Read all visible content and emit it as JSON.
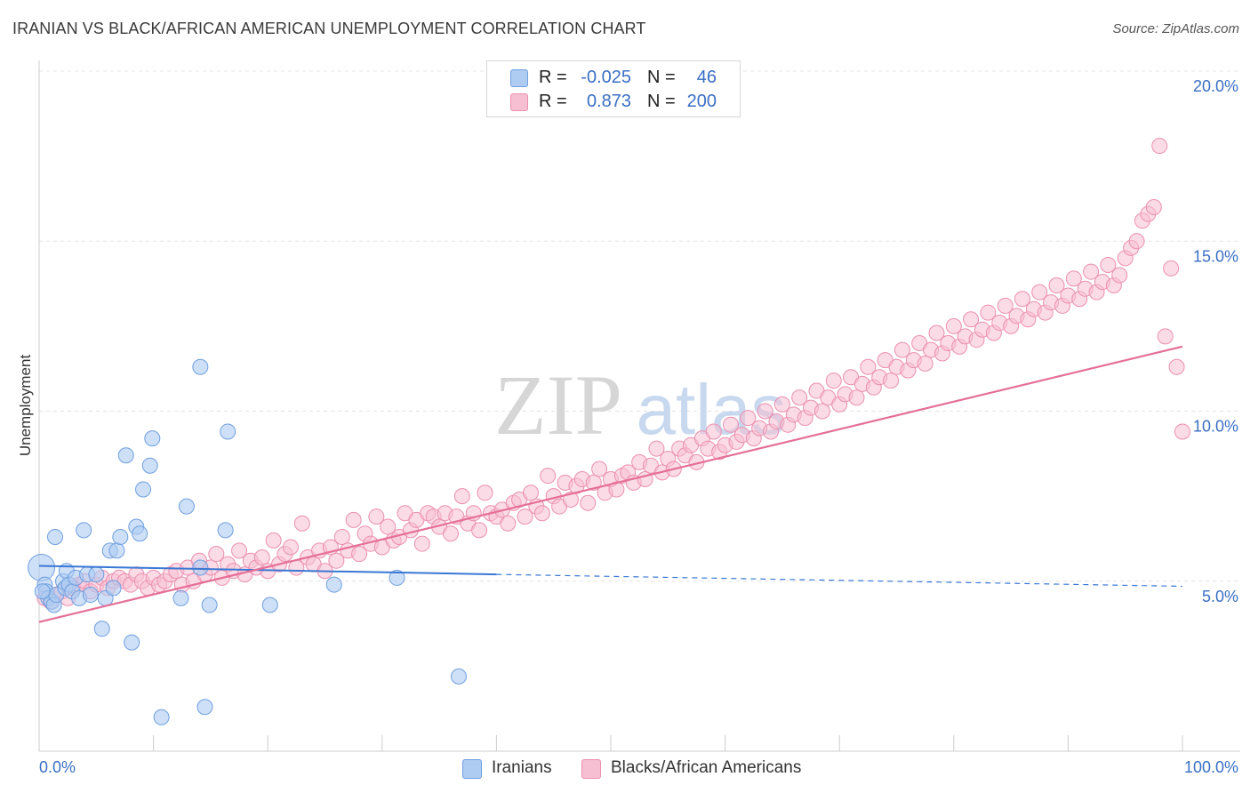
{
  "title": "IRANIAN VS BLACK/AFRICAN AMERICAN UNEMPLOYMENT CORRELATION CHART",
  "source": "Source: ZipAtlas.com",
  "watermark": {
    "zip": "ZIP",
    "atlas": "atlas"
  },
  "legend_top": {
    "rows": [
      {
        "r_label": "R =",
        "r_value": "-0.025",
        "n_label": "N =",
        "n_value": "46"
      },
      {
        "r_label": "R =",
        "r_value": "0.873",
        "n_label": "N =",
        "n_value": "200"
      }
    ]
  },
  "legend_bottom": {
    "series": [
      "Iranians",
      "Blacks/African Americans"
    ]
  },
  "colors": {
    "blue_fill": "#aecbf2",
    "blue_stroke": "#6f9fe0",
    "blue_line": "#3a78d4",
    "pink_fill": "#f7bfd2",
    "pink_stroke": "#ec8fb0",
    "pink_line": "#e56f98",
    "axis_label": "#3a6fc4",
    "grid": "#e4e4e4"
  },
  "chart_data": {
    "type": "scatter",
    "title": "IRANIAN VS BLACK/AFRICAN AMERICAN UNEMPLOYMENT CORRELATION CHART",
    "xlabel": "",
    "ylabel": "Unemployment",
    "xlim": [
      0,
      100
    ],
    "ylim": [
      0,
      20
    ],
    "x_tick_labels": [
      "0.0%",
      "100.0%"
    ],
    "y_ticks": [
      5,
      10,
      15,
      20
    ],
    "y_tick_labels": [
      "5.0%",
      "10.0%",
      "15.0%",
      "20.0%"
    ],
    "grid": true,
    "series": [
      {
        "name": "Iranians",
        "r": -0.025,
        "n": 46,
        "trend": {
          "x": [
            0,
            40
          ],
          "y": [
            5.45,
            5.2
          ],
          "dashed_to": [
            100,
            4.85
          ]
        },
        "points": [
          [
            0.2,
            5.4
          ],
          [
            0.5,
            4.9
          ],
          [
            0.6,
            4.7
          ],
          [
            0.8,
            4.5
          ],
          [
            1.1,
            4.4
          ],
          [
            1.3,
            4.3
          ],
          [
            1.5,
            4.6
          ],
          [
            1.4,
            6.3
          ],
          [
            2.1,
            5.0
          ],
          [
            2.3,
            4.8
          ],
          [
            2.4,
            5.3
          ],
          [
            2.6,
            4.9
          ],
          [
            2.9,
            4.7
          ],
          [
            3.2,
            5.1
          ],
          [
            3.5,
            4.5
          ],
          [
            3.9,
            6.5
          ],
          [
            4.2,
            5.2
          ],
          [
            4.5,
            4.6
          ],
          [
            5.0,
            5.2
          ],
          [
            5.5,
            3.6
          ],
          [
            5.8,
            4.5
          ],
          [
            6.2,
            5.9
          ],
          [
            6.5,
            4.8
          ],
          [
            6.8,
            5.9
          ],
          [
            7.1,
            6.3
          ],
          [
            7.6,
            8.7
          ],
          [
            8.1,
            3.2
          ],
          [
            8.5,
            6.6
          ],
          [
            8.8,
            6.4
          ],
          [
            9.1,
            7.7
          ],
          [
            9.7,
            8.4
          ],
          [
            9.9,
            9.2
          ],
          [
            10.7,
            1.0
          ],
          [
            12.4,
            4.5
          ],
          [
            12.9,
            7.2
          ],
          [
            14.1,
            5.4
          ],
          [
            14.1,
            11.3
          ],
          [
            14.5,
            1.3
          ],
          [
            14.9,
            4.3
          ],
          [
            16.3,
            6.5
          ],
          [
            16.5,
            9.4
          ],
          [
            20.2,
            4.3
          ],
          [
            25.8,
            4.9
          ],
          [
            31.3,
            5.1
          ],
          [
            36.7,
            2.2
          ],
          [
            0.3,
            4.7
          ]
        ]
      },
      {
        "name": "Blacks/African Americans",
        "r": 0.873,
        "n": 200,
        "trend": {
          "x": [
            0,
            100
          ],
          "y": [
            3.8,
            11.9
          ]
        },
        "points": [
          [
            0.5,
            4.5
          ],
          [
            1,
            4.4
          ],
          [
            1.5,
            4.6
          ],
          [
            2,
            4.7
          ],
          [
            2.5,
            4.5
          ],
          [
            3,
            4.8
          ],
          [
            3.5,
            4.9
          ],
          [
            4,
            5.0
          ],
          [
            4.5,
            4.7
          ],
          [
            5,
            4.9
          ],
          [
            5.5,
            5.1
          ],
          [
            6,
            4.8
          ],
          [
            6.5,
            5.0
          ],
          [
            7,
            5.1
          ],
          [
            7.5,
            5.0
          ],
          [
            8,
            4.9
          ],
          [
            8.5,
            5.2
          ],
          [
            9,
            5.0
          ],
          [
            9.5,
            4.8
          ],
          [
            10,
            5.1
          ],
          [
            10.5,
            4.9
          ],
          [
            11,
            5.0
          ],
          [
            11.5,
            5.2
          ],
          [
            12,
            5.3
          ],
          [
            12.5,
            4.9
          ],
          [
            13,
            5.4
          ],
          [
            13.5,
            5.0
          ],
          [
            14,
            5.6
          ],
          [
            14.5,
            5.2
          ],
          [
            15,
            5.4
          ],
          [
            15.5,
            5.8
          ],
          [
            16,
            5.1
          ],
          [
            16.5,
            5.5
          ],
          [
            17,
            5.3
          ],
          [
            17.5,
            5.9
          ],
          [
            18,
            5.2
          ],
          [
            18.5,
            5.6
          ],
          [
            19,
            5.4
          ],
          [
            19.5,
            5.7
          ],
          [
            20,
            5.3
          ],
          [
            20.5,
            6.2
          ],
          [
            21,
            5.5
          ],
          [
            21.5,
            5.8
          ],
          [
            22,
            6.0
          ],
          [
            22.5,
            5.4
          ],
          [
            23,
            6.7
          ],
          [
            23.5,
            5.7
          ],
          [
            24,
            5.5
          ],
          [
            24.5,
            5.9
          ],
          [
            25,
            5.3
          ],
          [
            25.5,
            6.0
          ],
          [
            26,
            5.6
          ],
          [
            26.5,
            6.3
          ],
          [
            27,
            5.9
          ],
          [
            27.5,
            6.8
          ],
          [
            28,
            5.8
          ],
          [
            28.5,
            6.4
          ],
          [
            29,
            6.1
          ],
          [
            29.5,
            6.9
          ],
          [
            30,
            6.0
          ],
          [
            30.5,
            6.6
          ],
          [
            31,
            6.2
          ],
          [
            31.5,
            6.3
          ],
          [
            32,
            7.0
          ],
          [
            32.5,
            6.5
          ],
          [
            33,
            6.8
          ],
          [
            33.5,
            6.1
          ],
          [
            34,
            7.0
          ],
          [
            34.5,
            6.9
          ],
          [
            35,
            6.6
          ],
          [
            35.5,
            7.0
          ],
          [
            36,
            6.4
          ],
          [
            36.5,
            6.9
          ],
          [
            37,
            7.5
          ],
          [
            37.5,
            6.7
          ],
          [
            38,
            7.0
          ],
          [
            38.5,
            6.5
          ],
          [
            39,
            7.6
          ],
          [
            39.5,
            7.0
          ],
          [
            40,
            6.9
          ],
          [
            40.5,
            7.1
          ],
          [
            41,
            6.7
          ],
          [
            41.5,
            7.3
          ],
          [
            42,
            7.4
          ],
          [
            42.5,
            6.9
          ],
          [
            43,
            7.6
          ],
          [
            43.5,
            7.2
          ],
          [
            44,
            7.0
          ],
          [
            44.5,
            8.1
          ],
          [
            45,
            7.5
          ],
          [
            45.5,
            7.2
          ],
          [
            46,
            7.9
          ],
          [
            46.5,
            7.4
          ],
          [
            47,
            7.8
          ],
          [
            47.5,
            8.0
          ],
          [
            48,
            7.3
          ],
          [
            48.5,
            7.9
          ],
          [
            49,
            8.3
          ],
          [
            49.5,
            7.6
          ],
          [
            50,
            8.0
          ],
          [
            50.5,
            7.7
          ],
          [
            51,
            8.1
          ],
          [
            51.5,
            8.2
          ],
          [
            52,
            7.9
          ],
          [
            52.5,
            8.5
          ],
          [
            53,
            8.0
          ],
          [
            53.5,
            8.4
          ],
          [
            54,
            8.9
          ],
          [
            54.5,
            8.2
          ],
          [
            55,
            8.6
          ],
          [
            55.5,
            8.3
          ],
          [
            56,
            8.9
          ],
          [
            56.5,
            8.7
          ],
          [
            57,
            9.0
          ],
          [
            57.5,
            8.5
          ],
          [
            58,
            9.2
          ],
          [
            58.5,
            8.9
          ],
          [
            59,
            9.4
          ],
          [
            59.5,
            8.8
          ],
          [
            60,
            9.0
          ],
          [
            60.5,
            9.6
          ],
          [
            61,
            9.1
          ],
          [
            61.5,
            9.3
          ],
          [
            62,
            9.8
          ],
          [
            62.5,
            9.2
          ],
          [
            63,
            9.5
          ],
          [
            63.5,
            10.0
          ],
          [
            64,
            9.4
          ],
          [
            64.5,
            9.7
          ],
          [
            65,
            10.2
          ],
          [
            65.5,
            9.6
          ],
          [
            66,
            9.9
          ],
          [
            66.5,
            10.4
          ],
          [
            67,
            9.8
          ],
          [
            67.5,
            10.1
          ],
          [
            68,
            10.6
          ],
          [
            68.5,
            10.0
          ],
          [
            69,
            10.4
          ],
          [
            69.5,
            10.9
          ],
          [
            70,
            10.2
          ],
          [
            70.5,
            10.5
          ],
          [
            71,
            11.0
          ],
          [
            71.5,
            10.4
          ],
          [
            72,
            10.8
          ],
          [
            72.5,
            11.3
          ],
          [
            73,
            10.7
          ],
          [
            73.5,
            11.0
          ],
          [
            74,
            11.5
          ],
          [
            74.5,
            10.9
          ],
          [
            75,
            11.3
          ],
          [
            75.5,
            11.8
          ],
          [
            76,
            11.2
          ],
          [
            76.5,
            11.5
          ],
          [
            77,
            12.0
          ],
          [
            77.5,
            11.4
          ],
          [
            78,
            11.8
          ],
          [
            78.5,
            12.3
          ],
          [
            79,
            11.7
          ],
          [
            79.5,
            12.0
          ],
          [
            80,
            12.5
          ],
          [
            80.5,
            11.9
          ],
          [
            81,
            12.2
          ],
          [
            81.5,
            12.7
          ],
          [
            82,
            12.1
          ],
          [
            82.5,
            12.4
          ],
          [
            83,
            12.9
          ],
          [
            83.5,
            12.3
          ],
          [
            84,
            12.6
          ],
          [
            84.5,
            13.1
          ],
          [
            85,
            12.5
          ],
          [
            85.5,
            12.8
          ],
          [
            86,
            13.3
          ],
          [
            86.5,
            12.7
          ],
          [
            87,
            13.0
          ],
          [
            87.5,
            13.5
          ],
          [
            88,
            12.9
          ],
          [
            88.5,
            13.2
          ],
          [
            89,
            13.7
          ],
          [
            89.5,
            13.1
          ],
          [
            90,
            13.4
          ],
          [
            90.5,
            13.9
          ],
          [
            91,
            13.3
          ],
          [
            91.5,
            13.6
          ],
          [
            92,
            14.1
          ],
          [
            92.5,
            13.5
          ],
          [
            93,
            13.8
          ],
          [
            93.5,
            14.3
          ],
          [
            94,
            13.7
          ],
          [
            94.5,
            14.0
          ],
          [
            95,
            14.5
          ],
          [
            95.5,
            14.8
          ],
          [
            96,
            15.0
          ],
          [
            96.5,
            15.6
          ],
          [
            97,
            15.8
          ],
          [
            97.5,
            16.0
          ],
          [
            98,
            17.8
          ],
          [
            98.5,
            12.2
          ],
          [
            99,
            14.2
          ],
          [
            99.5,
            11.3
          ],
          [
            100,
            9.4
          ]
        ]
      }
    ]
  }
}
